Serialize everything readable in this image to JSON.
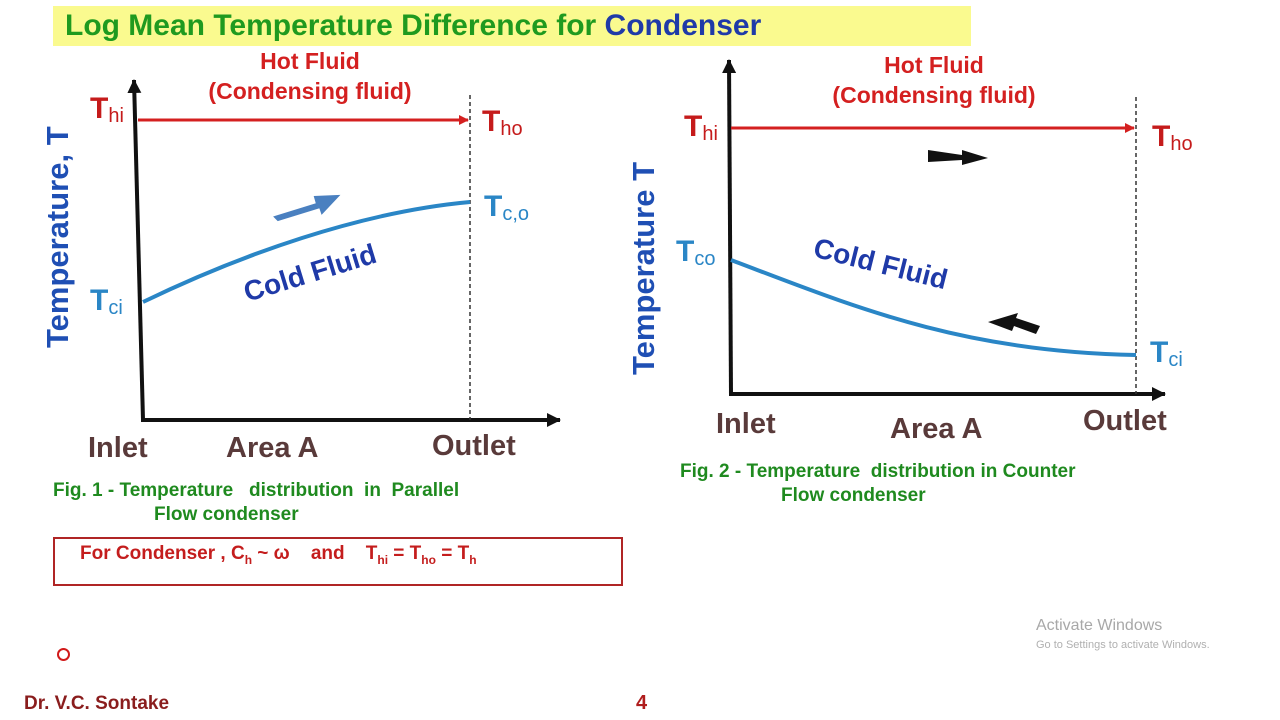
{
  "title": {
    "main": "Log Mean Temperature Difference for ",
    "accent": "Condenser"
  },
  "fig1": {
    "hot_fluid_line1": "Hot Fluid",
    "hot_fluid_line2": "(Condensing fluid)",
    "t_hi": "T",
    "t_hi_sub": "hi",
    "t_ho": "T",
    "t_ho_sub": "ho",
    "t_co": "T",
    "t_co_sub": "c,o",
    "t_ci": "T",
    "t_ci_sub": "ci",
    "y_axis": "Temperature,  T",
    "inlet": "Inlet",
    "area": "Area  A",
    "outlet": "Outlet",
    "cold_fluid": "Cold Fluid",
    "caption_line1": "Fig. 1 - Temperature   distribution  in  Parallel",
    "caption_line2": "Flow condenser"
  },
  "fig2": {
    "hot_fluid_line1": "Hot Fluid",
    "hot_fluid_line2": "(Condensing fluid)",
    "t_hi": "T",
    "t_hi_sub": "hi",
    "t_ho": "T",
    "t_ho_sub": "ho",
    "t_co": "T",
    "t_co_sub": "co",
    "t_ci": "T",
    "t_ci_sub": "ci",
    "y_axis": "Temperature T",
    "inlet": "Inlet",
    "area": "Area  A",
    "outlet": "Outlet",
    "cold_fluid": "Cold Fluid",
    "caption_line1": "Fig. 2 - Temperature  distribution in Counter",
    "caption_line2": "Flow condenser"
  },
  "condition": {
    "prefix": "For Condenser , C",
    "ch_sub": "h",
    "approx": " ~ ω    and    T",
    "thi_sub": "hi",
    "eq1": " = T",
    "tho_sub": "ho",
    "eq2": " = T",
    "th_sub": "h"
  },
  "footer": {
    "author": "Dr. V.C. Sontake",
    "page": "4"
  },
  "watermark": {
    "line1": "Activate Windows",
    "line2": "Go to Settings to activate Windows."
  },
  "colors": {
    "hot": "#d42020",
    "cold_curve": "#2a86c6",
    "axis": "#111111",
    "title_green": "#1f9a1f",
    "accent_blue": "#1f3aa8"
  }
}
